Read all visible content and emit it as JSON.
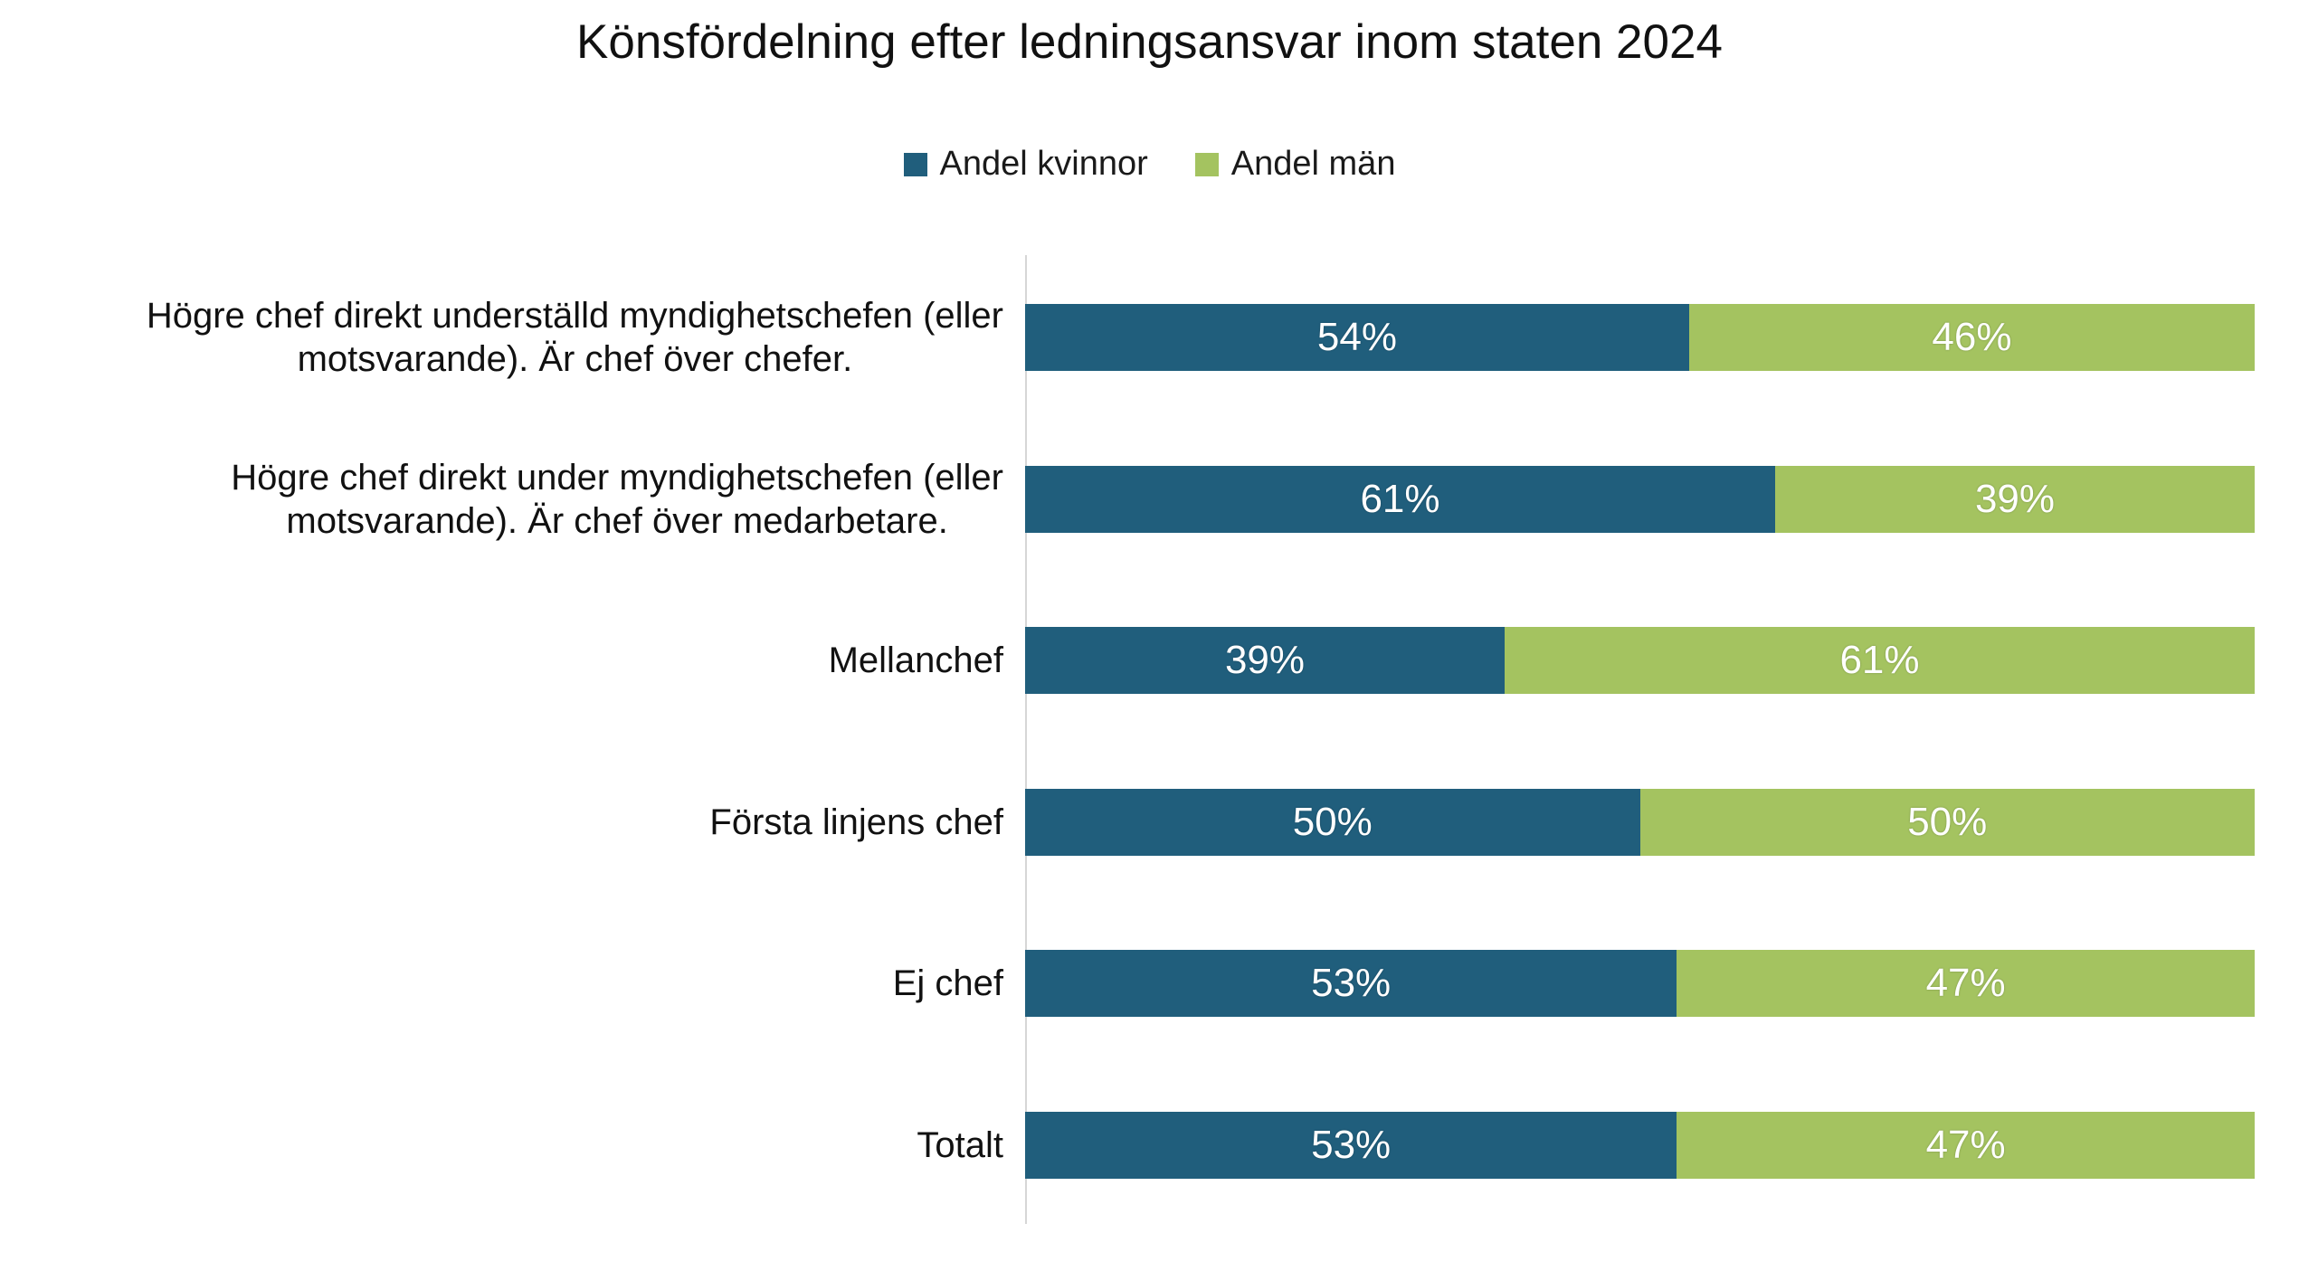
{
  "chart_data": {
    "type": "bar",
    "orientation": "horizontal",
    "stacked": true,
    "title": "Könsfördelning efter ledningsansvar inom staten 2024",
    "categories": [
      "Högre chef direkt underställd myndighetschefen (eller\nmotsvarande). Är chef över chefer.",
      "Högre chef direkt under myndighetschefen (eller\nmotsvarande). Är chef över medarbetare.",
      "Mellanchef",
      "Första linjens chef",
      "Ej chef",
      "Totalt"
    ],
    "series": [
      {
        "name": "Andel kvinnor",
        "color": "#205E7C",
        "values": [
          54,
          61,
          39,
          50,
          53,
          53
        ]
      },
      {
        "name": "Andel män",
        "color": "#A4C360",
        "values": [
          46,
          39,
          61,
          50,
          47,
          47
        ]
      }
    ],
    "value_suffix": "%",
    "xlim": [
      0,
      100
    ],
    "legend_position": "top",
    "grid": false,
    "axis_line_color": "#D6D6D6",
    "value_label_color": "#FFFFFF",
    "background_color": "#FFFFFF"
  }
}
